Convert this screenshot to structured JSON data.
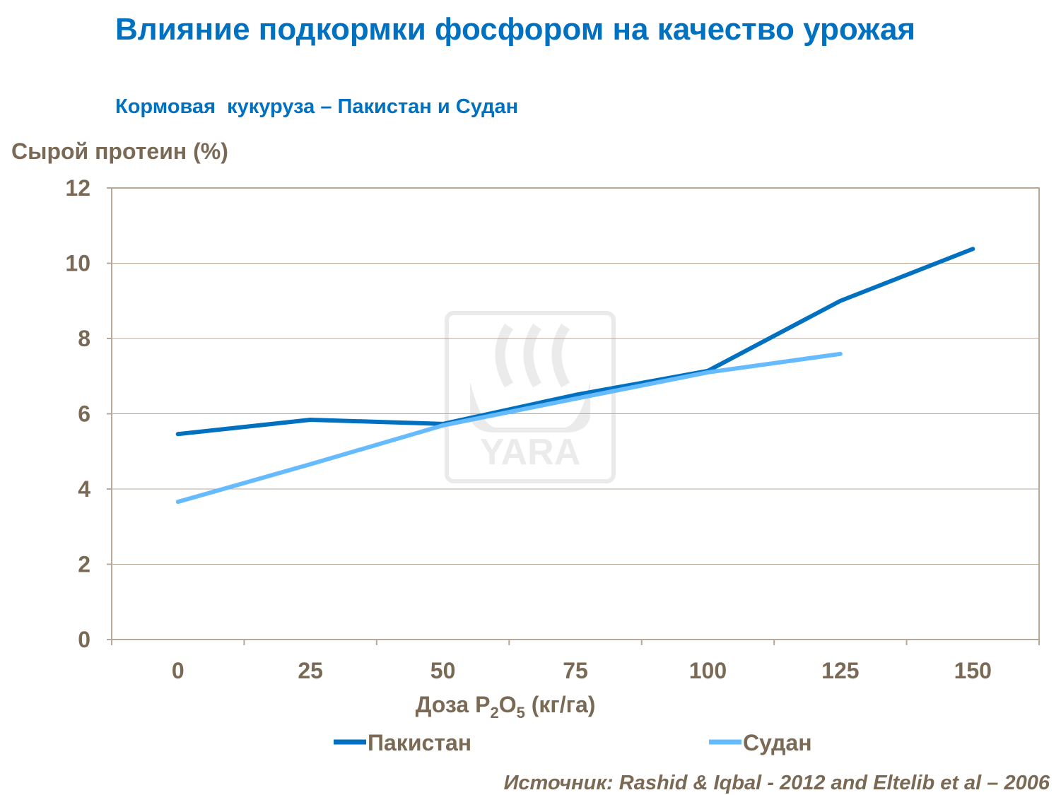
{
  "title": "Влияние подкормки фосфором на качество урожая",
  "subtitle": "Кормовая  кукуруза – Пакистан и Судан",
  "source": "Источник: Rashid & Iqbal - 2012 and Eltelib et al – 2006",
  "watermark": "YARA",
  "chart_data": {
    "type": "line",
    "ylabel": "Сырой протеин (%)",
    "xlabel_parts": {
      "main": "Доза P",
      "sub1": "2",
      "mid": "O",
      "sub2": "5",
      "tail": " (кг/га)"
    },
    "categories": [
      "0",
      "25",
      "50",
      "75",
      "100",
      "125",
      "150"
    ],
    "ylim": [
      0,
      12
    ],
    "yticks": [
      "0",
      "2",
      "4",
      "6",
      "8",
      "10",
      "12"
    ],
    "grid": true,
    "legend_position": "bottom",
    "series": [
      {
        "name": "Пакистан",
        "color": "#0070c0",
        "values": [
          5.46,
          5.84,
          5.73,
          6.5,
          7.14,
          9.0,
          10.38
        ]
      },
      {
        "name": "Судан",
        "color": "#66bbff",
        "values": [
          3.66,
          4.66,
          5.69,
          6.4,
          7.1,
          7.59,
          null
        ]
      }
    ]
  }
}
